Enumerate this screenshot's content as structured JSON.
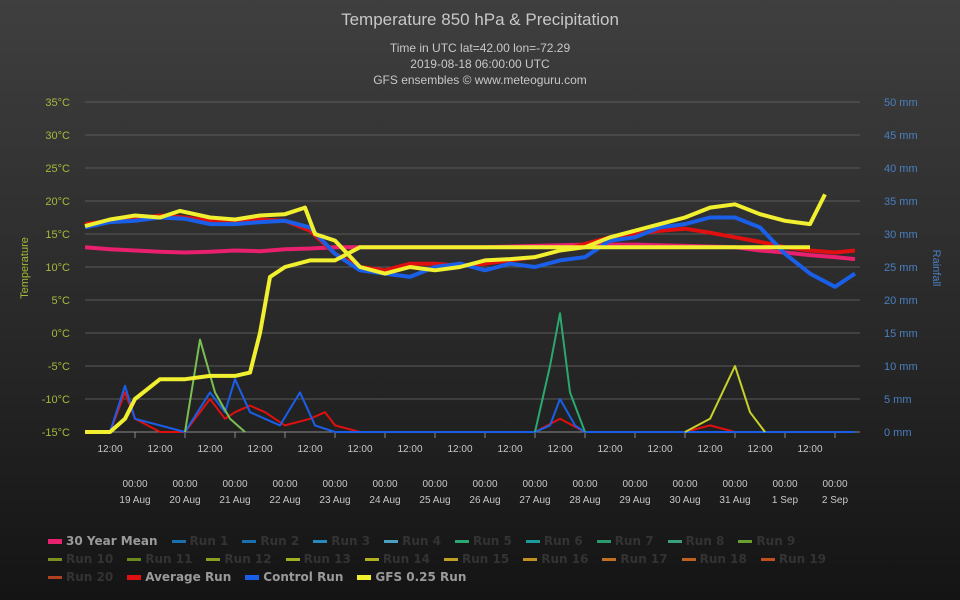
{
  "header": {
    "title": "Temperature 850 hPa & Precipitation",
    "subtitle_lines": [
      "Time in UTC lat=42.00 lon=-72.29",
      "2019-08-18 06:00:00 UTC",
      "GFS ensembles © www.meteoguru.com"
    ]
  },
  "colors": {
    "temp_axis": "#a8b83a",
    "rain_axis": "#4a7fc0",
    "text": "#c8c8c8",
    "grid": "#5a5a5a"
  },
  "chart_data": {
    "type": "line",
    "title": "Temperature 850 hPa & Precipitation",
    "ylabel_left": "Temperature",
    "ylabel_right": "Rainfall",
    "ylim_left": [
      -15,
      35
    ],
    "ylim_right": [
      0,
      50
    ],
    "left_ticks": [
      "35°C",
      "30°C",
      "25°C",
      "20°C",
      "15°C",
      "10°C",
      "5°C",
      "0°C",
      "-5°C",
      "-10°C",
      "-15°C"
    ],
    "right_ticks": [
      "50 mm",
      "45 mm",
      "40 mm",
      "35 mm",
      "30 mm",
      "25 mm",
      "20 mm",
      "15 mm",
      "10 mm",
      "5 mm",
      "0 mm"
    ],
    "x_top_labels": [
      "12:00",
      "12:00",
      "12:00",
      "12:00",
      "12:00",
      "12:00",
      "12:00",
      "12:00",
      "12:00",
      "12:00",
      "12:00",
      "12:00",
      "12:00",
      "12:00",
      "12:00"
    ],
    "x_time_labels": [
      "00:00",
      "00:00",
      "00:00",
      "00:00",
      "00:00",
      "00:00",
      "00:00",
      "00:00",
      "00:00",
      "00:00",
      "00:00",
      "00:00",
      "00:00",
      "00:00",
      "00:00"
    ],
    "x_date_labels": [
      "19 Aug",
      "20 Aug",
      "21 Aug",
      "22 Aug",
      "23 Aug",
      "24 Aug",
      "25 Aug",
      "26 Aug",
      "27 Aug",
      "28 Aug",
      "29 Aug",
      "30 Aug",
      "31 Aug",
      "1 Sep",
      "2 Sep"
    ],
    "x_day_range": [
      0,
      15.5
    ],
    "temp_series": [
      {
        "name": "30 Year Mean",
        "color": "#e8206e",
        "width": 4,
        "points": [
          [
            0,
            13
          ],
          [
            0.5,
            12.7
          ],
          [
            1,
            12.5
          ],
          [
            1.5,
            12.3
          ],
          [
            2,
            12.2
          ],
          [
            2.5,
            12.3
          ],
          [
            3,
            12.5
          ],
          [
            3.5,
            12.4
          ],
          [
            4,
            12.7
          ],
          [
            4.5,
            12.8
          ],
          [
            5,
            13
          ],
          [
            6,
            13
          ],
          [
            7,
            13
          ],
          [
            8,
            13
          ],
          [
            9,
            13.2
          ],
          [
            10,
            13.4
          ],
          [
            11,
            13.4
          ],
          [
            12,
            13.2
          ],
          [
            13,
            13
          ],
          [
            13.5,
            12.5
          ],
          [
            14,
            12.2
          ],
          [
            14.5,
            11.8
          ],
          [
            15,
            11.5
          ],
          [
            15.4,
            11.2
          ]
        ]
      },
      {
        "name": "Average Run",
        "color": "#e01010",
        "width": 4,
        "points": [
          [
            0,
            16.5
          ],
          [
            0.5,
            17
          ],
          [
            1,
            17.2
          ],
          [
            1.5,
            17.8
          ],
          [
            2,
            17.5
          ],
          [
            2.5,
            17
          ],
          [
            3,
            17
          ],
          [
            3.5,
            17.2
          ],
          [
            4,
            17
          ],
          [
            4.5,
            15.5
          ],
          [
            5,
            12
          ],
          [
            5.5,
            10
          ],
          [
            6,
            9.5
          ],
          [
            6.5,
            10.5
          ],
          [
            7,
            10.5
          ],
          [
            7.5,
            10.2
          ],
          [
            8,
            10.5
          ],
          [
            8.5,
            11
          ],
          [
            9,
            11.5
          ],
          [
            9.5,
            12.5
          ],
          [
            10,
            13.5
          ],
          [
            10.5,
            14.5
          ],
          [
            11,
            15
          ],
          [
            11.5,
            15.5
          ],
          [
            12,
            15.8
          ],
          [
            12.5,
            15.2
          ],
          [
            13,
            14.5
          ],
          [
            13.5,
            13.8
          ],
          [
            14,
            13
          ],
          [
            14.5,
            12.5
          ],
          [
            15,
            12.2
          ],
          [
            15.4,
            12.5
          ]
        ]
      },
      {
        "name": "Control Run",
        "color": "#1a5fe8",
        "width": 4,
        "points": [
          [
            0,
            16
          ],
          [
            0.5,
            16.8
          ],
          [
            1,
            17
          ],
          [
            1.5,
            17.5
          ],
          [
            2,
            17.3
          ],
          [
            2.5,
            16.5
          ],
          [
            3,
            16.5
          ],
          [
            3.5,
            16.8
          ],
          [
            4,
            17
          ],
          [
            4.5,
            16
          ],
          [
            5,
            12
          ],
          [
            5.5,
            9.5
          ],
          [
            6,
            9
          ],
          [
            6.5,
            8.5
          ],
          [
            7,
            10
          ],
          [
            7.5,
            10.5
          ],
          [
            8,
            9.5
          ],
          [
            8.5,
            10.5
          ],
          [
            9,
            10
          ],
          [
            9.5,
            11
          ],
          [
            10,
            11.5
          ],
          [
            10.5,
            14
          ],
          [
            11,
            14.5
          ],
          [
            11.5,
            16
          ],
          [
            12,
            16.5
          ],
          [
            12.5,
            17.5
          ],
          [
            13,
            17.5
          ],
          [
            13.5,
            16
          ],
          [
            14,
            12
          ],
          [
            14.5,
            9
          ],
          [
            15,
            7
          ],
          [
            15.4,
            9
          ]
        ]
      },
      {
        "name": "GFS 0.25 Run",
        "color": "#f0f030",
        "width": 4,
        "points": [
          [
            0,
            16.2
          ],
          [
            0.5,
            17.2
          ],
          [
            1,
            17.8
          ],
          [
            1.5,
            17.5
          ],
          [
            1.9,
            18.5
          ],
          [
            2.5,
            17.5
          ],
          [
            3,
            17.2
          ],
          [
            3.5,
            17.8
          ],
          [
            4,
            18
          ],
          [
            4.4,
            19
          ],
          [
            4.6,
            15
          ],
          [
            5,
            14
          ],
          [
            5.5,
            10
          ],
          [
            6,
            9
          ],
          [
            6.5,
            10
          ],
          [
            7,
            9.5
          ],
          [
            7.5,
            10
          ],
          [
            8,
            11
          ],
          [
            8.5,
            11.2
          ],
          [
            9,
            11.5
          ],
          [
            9.5,
            12.5
          ],
          [
            10,
            13
          ],
          [
            10.5,
            14.5
          ],
          [
            11,
            15.5
          ],
          [
            11.5,
            16.5
          ],
          [
            12,
            17.5
          ],
          [
            12.5,
            19
          ],
          [
            13,
            19.5
          ],
          [
            13.5,
            18
          ],
          [
            14,
            17
          ],
          [
            14.5,
            16.5
          ],
          [
            14.8,
            21
          ]
        ]
      },
      {
        "name": "GFS 0.25 Run rainfall",
        "color": "#f0f030",
        "width": 4,
        "axis": "right",
        "points": [
          [
            0,
            0
          ],
          [
            0.5,
            0
          ],
          [
            0.8,
            2
          ],
          [
            1,
            5
          ],
          [
            1.5,
            8
          ],
          [
            2,
            8
          ],
          [
            2.5,
            8.5
          ],
          [
            3,
            8.5
          ],
          [
            3.3,
            9
          ],
          [
            3.5,
            15
          ],
          [
            3.7,
            23.5
          ],
          [
            4,
            25
          ],
          [
            4.5,
            26
          ],
          [
            5,
            26
          ],
          [
            5.5,
            28
          ],
          [
            6,
            28
          ],
          [
            7,
            28
          ],
          [
            8,
            28
          ],
          [
            9,
            28
          ],
          [
            10,
            28
          ],
          [
            11,
            28
          ],
          [
            12,
            28
          ],
          [
            13,
            28
          ],
          [
            14,
            28
          ],
          [
            14.5,
            28
          ]
        ]
      }
    ],
    "rain_series": [
      {
        "name": "Average Run",
        "color": "#e01010",
        "points": [
          [
            0,
            0
          ],
          [
            0.5,
            0
          ],
          [
            0.8,
            6
          ],
          [
            1,
            2
          ],
          [
            1.5,
            0
          ],
          [
            2,
            0
          ],
          [
            2.5,
            5
          ],
          [
            2.8,
            2
          ],
          [
            3,
            3
          ],
          [
            3.3,
            4
          ],
          [
            3.6,
            3
          ],
          [
            4,
            1
          ],
          [
            4.5,
            2
          ],
          [
            4.8,
            3
          ],
          [
            5,
            1
          ],
          [
            5.5,
            0
          ],
          [
            9,
            0
          ],
          [
            9.5,
            2
          ],
          [
            10,
            0
          ],
          [
            12,
            0
          ],
          [
            12.5,
            1
          ],
          [
            13,
            0
          ],
          [
            15.4,
            0
          ]
        ]
      },
      {
        "name": "Control Run",
        "color": "#1a5fe8",
        "points": [
          [
            0,
            0
          ],
          [
            0.5,
            0
          ],
          [
            0.8,
            7
          ],
          [
            1,
            2
          ],
          [
            1.5,
            1
          ],
          [
            2,
            0
          ],
          [
            2.5,
            6
          ],
          [
            2.8,
            3
          ],
          [
            3,
            8
          ],
          [
            3.3,
            3
          ],
          [
            3.6,
            2
          ],
          [
            3.9,
            1
          ],
          [
            4.3,
            6
          ],
          [
            4.6,
            1
          ],
          [
            5,
            0
          ],
          [
            9,
            0
          ],
          [
            9.3,
            1
          ],
          [
            9.5,
            5
          ],
          [
            9.8,
            1
          ],
          [
            10,
            0
          ],
          [
            15.4,
            0
          ]
        ]
      },
      {
        "name": "Run 5",
        "color": "#2aa870",
        "points": [
          [
            9,
            0
          ],
          [
            9.3,
            10
          ],
          [
            9.5,
            18
          ],
          [
            9.7,
            6
          ],
          [
            10,
            0
          ]
        ]
      },
      {
        "name": "Run 8",
        "color": "#c8d02a",
        "points": [
          [
            12,
            0
          ],
          [
            12.5,
            2
          ],
          [
            13,
            10
          ],
          [
            13.3,
            3
          ],
          [
            13.6,
            0
          ]
        ]
      },
      {
        "name": "Run 9",
        "color": "#7ac050",
        "points": [
          [
            2,
            0
          ],
          [
            2.3,
            14
          ],
          [
            2.6,
            6
          ],
          [
            2.9,
            2
          ],
          [
            3.2,
            0
          ]
        ]
      }
    ],
    "legend": [
      {
        "name": "30 Year Mean",
        "color": "#e8206e",
        "active": true,
        "thick": true
      },
      {
        "name": "Run 1",
        "color": "#1a6fb0",
        "active": false
      },
      {
        "name": "Run 2",
        "color": "#1a6fb0",
        "active": false
      },
      {
        "name": "Run 3",
        "color": "#2a88c0",
        "active": false
      },
      {
        "name": "Run 4",
        "color": "#4aa0c0",
        "active": false
      },
      {
        "name": "Run 5",
        "color": "#2aa870",
        "active": false
      },
      {
        "name": "Run 6",
        "color": "#1a9a9a",
        "active": false
      },
      {
        "name": "Run 7",
        "color": "#2a9a6a",
        "active": false
      },
      {
        "name": "Run 8",
        "color": "#3aa07a",
        "active": false
      },
      {
        "name": "Run 9",
        "color": "#6aa030",
        "active": false
      },
      {
        "name": "Run 10",
        "color": "#7a9020",
        "active": false
      },
      {
        "name": "Run 11",
        "color": "#6a8a20",
        "active": false
      },
      {
        "name": "Run 12",
        "color": "#8aa020",
        "active": false
      },
      {
        "name": "Run 13",
        "color": "#a0b020",
        "active": false
      },
      {
        "name": "Run 14",
        "color": "#b0b020",
        "active": false
      },
      {
        "name": "Run 15",
        "color": "#c0a020",
        "active": false
      },
      {
        "name": "Run 16",
        "color": "#c09020",
        "active": false
      },
      {
        "name": "Run 17",
        "color": "#c07020",
        "active": false
      },
      {
        "name": "Run 18",
        "color": "#c06020",
        "active": false
      },
      {
        "name": "Run 19",
        "color": "#c05020",
        "active": false
      },
      {
        "name": "Run 20",
        "color": "#b04020",
        "active": false
      },
      {
        "name": "Average Run",
        "color": "#e01010",
        "active": true,
        "thick": true
      },
      {
        "name": "Control Run",
        "color": "#1a5fe8",
        "active": true,
        "thick": true
      },
      {
        "name": "GFS 0.25 Run",
        "color": "#f0f030",
        "active": true,
        "thick": true
      }
    ]
  }
}
